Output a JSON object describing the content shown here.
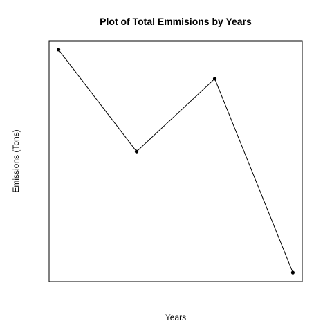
{
  "chart_data": {
    "type": "line",
    "title": "Plot of Total Emmisions by Years",
    "xlabel": "Years",
    "ylabel": "Emissions (Tons)",
    "x": [
      1,
      2,
      3,
      4
    ],
    "y": [
      100,
      56.6,
      87.6,
      5
    ],
    "grid": false,
    "axes_ticks": false,
    "colors": {
      "line": "#000000",
      "points": "#000000",
      "frame": "#000000"
    }
  }
}
